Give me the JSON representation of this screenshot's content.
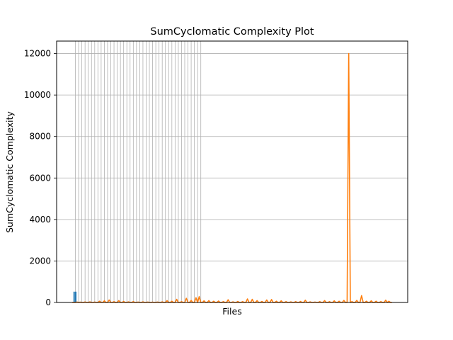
{
  "chart_data": {
    "type": "bar",
    "title": "SumCyclomatic Complexity Plot",
    "xlabel": "Files",
    "ylabel": "SumCyclomatic Complexity",
    "ylim": [
      0,
      12600
    ],
    "yticks": [
      0,
      2000,
      4000,
      6000,
      8000,
      10000,
      12000
    ],
    "ytick_labels": [
      "0",
      "2000",
      "4000",
      "6000",
      "8000",
      "10000",
      "12000"
    ],
    "grid": true,
    "n_files": 200,
    "series": [
      {
        "color": "#1f77b4",
        "style": "bar",
        "values": [
          520,
          520
        ]
      },
      {
        "color": "#ff7f0e",
        "style": "line",
        "spikes": [
          [
            3,
            20
          ],
          [
            5,
            15
          ],
          [
            8,
            25
          ],
          [
            11,
            30
          ],
          [
            14,
            20
          ],
          [
            17,
            60
          ],
          [
            20,
            80
          ],
          [
            23,
            120
          ],
          [
            26,
            40
          ],
          [
            29,
            90
          ],
          [
            32,
            50
          ],
          [
            35,
            30
          ],
          [
            38,
            40
          ],
          [
            41,
            20
          ],
          [
            44,
            30
          ],
          [
            47,
            20
          ],
          [
            50,
            15
          ],
          [
            53,
            20
          ],
          [
            56,
            30
          ],
          [
            59,
            90
          ],
          [
            62,
            60
          ],
          [
            65,
            150
          ],
          [
            68,
            40
          ],
          [
            71,
            200
          ],
          [
            74,
            100
          ],
          [
            77,
            230
          ],
          [
            79,
            280
          ],
          [
            82,
            80
          ],
          [
            85,
            90
          ],
          [
            88,
            60
          ],
          [
            91,
            70
          ],
          [
            94,
            40
          ],
          [
            97,
            130
          ],
          [
            100,
            30
          ],
          [
            103,
            50
          ],
          [
            106,
            40
          ],
          [
            109,
            170
          ],
          [
            112,
            150
          ],
          [
            115,
            90
          ],
          [
            118,
            50
          ],
          [
            121,
            120
          ],
          [
            124,
            140
          ],
          [
            127,
            60
          ],
          [
            130,
            80
          ],
          [
            133,
            40
          ],
          [
            136,
            30
          ],
          [
            139,
            40
          ],
          [
            142,
            50
          ],
          [
            145,
            110
          ],
          [
            148,
            30
          ],
          [
            151,
            20
          ],
          [
            154,
            40
          ],
          [
            157,
            90
          ],
          [
            160,
            40
          ],
          [
            163,
            80
          ],
          [
            166,
            60
          ],
          [
            169,
            100
          ],
          [
            172,
            12000
          ],
          [
            174,
            40
          ],
          [
            177,
            100
          ],
          [
            180,
            330
          ],
          [
            183,
            60
          ],
          [
            186,
            80
          ],
          [
            189,
            60
          ],
          [
            192,
            40
          ],
          [
            195,
            110
          ],
          [
            197,
            60
          ]
        ]
      }
    ],
    "vgrid_x": [
      2,
      4,
      6,
      8,
      10,
      12,
      14,
      16,
      18,
      20,
      22,
      24,
      26,
      28,
      30,
      32,
      34,
      36,
      38,
      40,
      42,
      44,
      46,
      48,
      50,
      52,
      54,
      56,
      58,
      60,
      62,
      64,
      66,
      68,
      70,
      72,
      74,
      76,
      78,
      80
    ]
  }
}
